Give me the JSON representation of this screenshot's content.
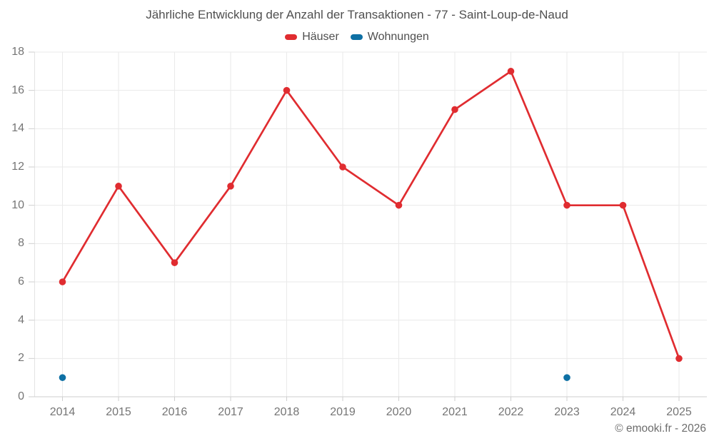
{
  "chart_data": {
    "type": "line",
    "title": "Jährliche Entwicklung der Anzahl der Transaktionen - 77 - Saint-Loup-de-Naud",
    "x": [
      "2014",
      "2015",
      "2016",
      "2017",
      "2018",
      "2019",
      "2020",
      "2021",
      "2022",
      "2023",
      "2024",
      "2025"
    ],
    "series": [
      {
        "name": "Häuser",
        "color": "#e02c30",
        "values": [
          6,
          11,
          7,
          11,
          16,
          12,
          10,
          15,
          17,
          10,
          10,
          2
        ]
      },
      {
        "name": "Wohnungen",
        "color": "#0e70a4",
        "values": [
          1,
          null,
          null,
          null,
          null,
          null,
          null,
          null,
          null,
          1,
          null,
          null
        ]
      }
    ],
    "xlabel": "",
    "ylabel": "",
    "ylim": [
      0,
      18
    ],
    "ytick_step": 2,
    "grid": true,
    "legend_position": "top"
  },
  "footer": {
    "copyright": "© emooki.fr - 2026"
  },
  "styles": {
    "grid_color": "#eaeaea",
    "axis_line_color": "#e3e3e3",
    "baseline_color": "#cfcfcf",
    "tick_color": "#cfcfcf",
    "title_color": "#4f4f4f",
    "axis_label_color": "#757575"
  }
}
